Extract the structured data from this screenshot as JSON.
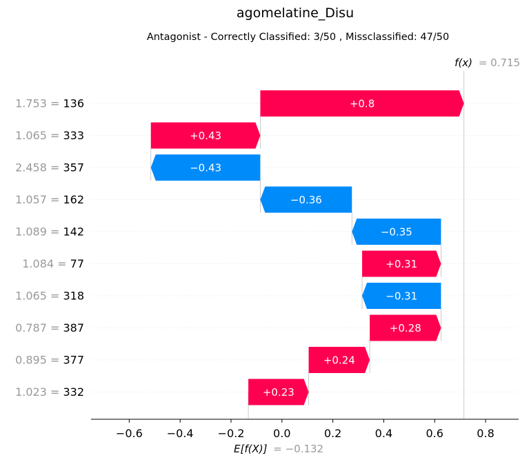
{
  "chart_data": {
    "type": "waterfall",
    "title": "agomelatine_Disu",
    "subtitle": "Antagonist - Correctly Classified: 3/50 , Missclassified: 47/50",
    "fx": {
      "label": "f(x)",
      "value": 0.715,
      "value_text": "= 0.715"
    },
    "base": {
      "label": "E[f(X)]",
      "value": -0.132,
      "value_text": "= −0.132"
    },
    "xlim": [
      -0.75,
      0.93
    ],
    "xticks": [
      {
        "v": -0.6,
        "label": "−0.6"
      },
      {
        "v": -0.4,
        "label": "−0.4"
      },
      {
        "v": -0.2,
        "label": "−0.2"
      },
      {
        "v": 0.0,
        "label": "0.0"
      },
      {
        "v": 0.2,
        "label": "0.2"
      },
      {
        "v": 0.4,
        "label": "0.4"
      },
      {
        "v": 0.6,
        "label": "0.6"
      },
      {
        "v": 0.8,
        "label": "0.8"
      }
    ],
    "features": [
      {
        "value": "1.753",
        "name": "136",
        "start": -0.085,
        "end": 0.715,
        "label": "+0.8"
      },
      {
        "value": "1.065",
        "name": "333",
        "start": -0.515,
        "end": -0.085,
        "label": "+0.43"
      },
      {
        "value": "2.458",
        "name": "357",
        "start": -0.085,
        "end": -0.515,
        "label": "−0.43"
      },
      {
        "value": "1.057",
        "name": "162",
        "start": 0.275,
        "end": -0.085,
        "label": "−0.36"
      },
      {
        "value": "1.089",
        "name": "142",
        "start": 0.625,
        "end": 0.275,
        "label": "−0.35"
      },
      {
        "value": "1.084",
        "name": "77",
        "start": 0.315,
        "end": 0.625,
        "label": "+0.31"
      },
      {
        "value": "1.065",
        "name": "318",
        "start": 0.625,
        "end": 0.315,
        "label": "−0.31"
      },
      {
        "value": "0.787",
        "name": "387",
        "start": 0.345,
        "end": 0.625,
        "label": "+0.28"
      },
      {
        "value": "0.895",
        "name": "377",
        "start": 0.105,
        "end": 0.345,
        "label": "+0.24"
      },
      {
        "value": "1.023",
        "name": "332",
        "start": -0.132,
        "end": 0.105,
        "label": "+0.23"
      }
    ],
    "colors": {
      "positive": "#ff0051",
      "negative": "#008bfb",
      "value_text": "#999999"
    }
  }
}
